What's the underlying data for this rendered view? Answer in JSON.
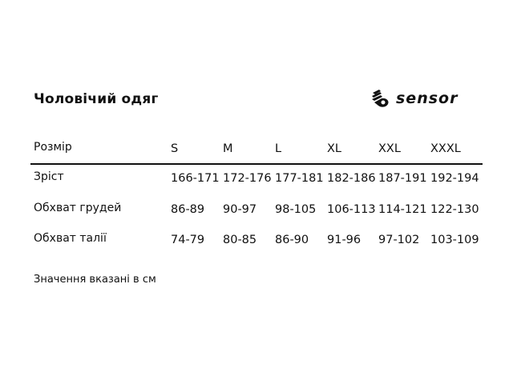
{
  "title": "Чоловічий одяг",
  "brand": {
    "logo_text": "sensor",
    "icon": "hand-icon"
  },
  "table": {
    "header_label": "Розмір",
    "sizes": [
      "S",
      "M",
      "L",
      "XL",
      "XXL",
      "XXXL"
    ],
    "rows": [
      {
        "label": "Зріст",
        "values": [
          "166-171",
          "172-176",
          "177-181",
          "182-186",
          "187-191",
          "192-194"
        ]
      },
      {
        "label": "Обхват грудей",
        "values": [
          "86-89",
          "90-97",
          "98-105",
          "106-113",
          "114-121",
          "122-130"
        ]
      },
      {
        "label": "Обхват талії",
        "values": [
          "74-79",
          "80-85",
          "86-90",
          "91-96",
          "97-102",
          "103-109"
        ]
      }
    ]
  },
  "note": "Значення вказані в см"
}
